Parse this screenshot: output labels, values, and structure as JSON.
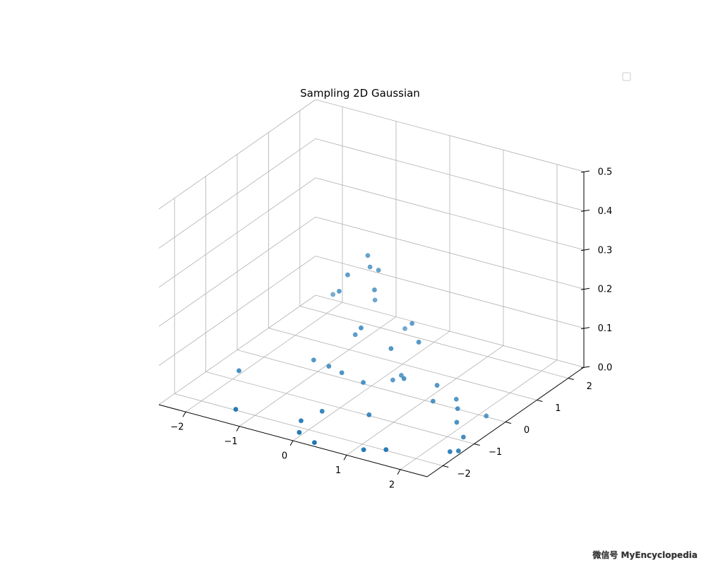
{
  "chart_data": {
    "type": "scatter",
    "projection": "3d",
    "title": "Sampling 2D Gaussian",
    "xlabel": "",
    "ylabel": "",
    "zlabel": "",
    "xlim": [
      -2.5,
      2.5
    ],
    "ylim": [
      -2.5,
      2.5
    ],
    "zlim": [
      0.0,
      0.5
    ],
    "x_ticks": [
      "−2",
      "−1",
      "0",
      "1",
      "2"
    ],
    "y_ticks": [
      "−2",
      "−1",
      "0",
      "1",
      "2"
    ],
    "z_ticks": [
      "0.0",
      "0.1",
      "0.2",
      "0.3",
      "0.4",
      "0.5"
    ],
    "grid": true,
    "legend": {
      "placement": "top-right",
      "entries": []
    },
    "marker_color": "#1f77b4",
    "points": [
      {
        "x": -0.3,
        "y": 0.4,
        "z": 0.3
      },
      {
        "x": -0.2,
        "y": 0.3,
        "z": 0.28
      },
      {
        "x": -0.1,
        "y": 0.4,
        "z": 0.27
      },
      {
        "x": -0.5,
        "y": 0.1,
        "z": 0.26
      },
      {
        "x": -0.6,
        "y": 0.0,
        "z": 0.22
      },
      {
        "x": 0.0,
        "y": 0.1,
        "z": 0.24
      },
      {
        "x": -0.4,
        "y": 0.8,
        "z": 0.16
      },
      {
        "x": 0.1,
        "y": -0.5,
        "z": 0.18
      },
      {
        "x": 0.7,
        "y": 0.1,
        "z": 0.18
      },
      {
        "x": 1.0,
        "y": -0.2,
        "z": 0.16
      },
      {
        "x": 0.6,
        "y": -0.4,
        "z": 0.14
      },
      {
        "x": -1.3,
        "y": 1.0,
        "z": 0.13
      },
      {
        "x": 0.1,
        "y": 0.9,
        "z": 0.1
      },
      {
        "x": -0.3,
        "y": 0.0,
        "z": 0.12
      },
      {
        "x": -0.9,
        "y": -0.3,
        "z": 0.05
      },
      {
        "x": -0.5,
        "y": -0.5,
        "z": 0.06
      },
      {
        "x": -0.2,
        "y": -0.6,
        "z": 0.06
      },
      {
        "x": 0.2,
        "y": -0.6,
        "z": 0.05
      },
      {
        "x": 0.5,
        "y": 0.1,
        "z": 0.04
      },
      {
        "x": 0.4,
        "y": 0.0,
        "z": 0.03
      },
      {
        "x": 0.9,
        "y": -0.5,
        "z": 0.08
      },
      {
        "x": 1.4,
        "y": -0.3,
        "z": 0.07
      },
      {
        "x": 1.5,
        "y": -0.6,
        "z": 0.05
      },
      {
        "x": 1.7,
        "y": -0.2,
        "z": 0.04
      },
      {
        "x": 1.9,
        "y": -0.5,
        "z": 0.04
      },
      {
        "x": 2.0,
        "y": -0.7,
        "z": 0.02
      },
      {
        "x": -2.0,
        "y": -0.8,
        "z": 0.01
      },
      {
        "x": -1.3,
        "y": -2.1,
        "z": 0.01
      },
      {
        "x": -0.1,
        "y": -1.4,
        "z": 0.01
      },
      {
        "x": 0.6,
        "y": -1.1,
        "z": 0.01
      },
      {
        "x": -0.2,
        "y": -1.9,
        "z": 0.01
      },
      {
        "x": 0.0,
        "y": -2.3,
        "z": 0.01
      },
      {
        "x": 0.4,
        "y": -2.5,
        "z": 0.01
      },
      {
        "x": 1.2,
        "y": -2.3,
        "z": 0.01
      },
      {
        "x": 1.5,
        "y": -2.1,
        "z": 0.01
      },
      {
        "x": 2.2,
        "y": -0.1,
        "z": 0.01
      },
      {
        "x": 2.3,
        "y": -1.0,
        "z": 0.01
      },
      {
        "x": 2.5,
        "y": -1.5,
        "z": 0.01
      },
      {
        "x": 2.4,
        "y": -1.6,
        "z": 0.01
      }
    ]
  },
  "watermark": "微信号 MyEncyclopedia"
}
